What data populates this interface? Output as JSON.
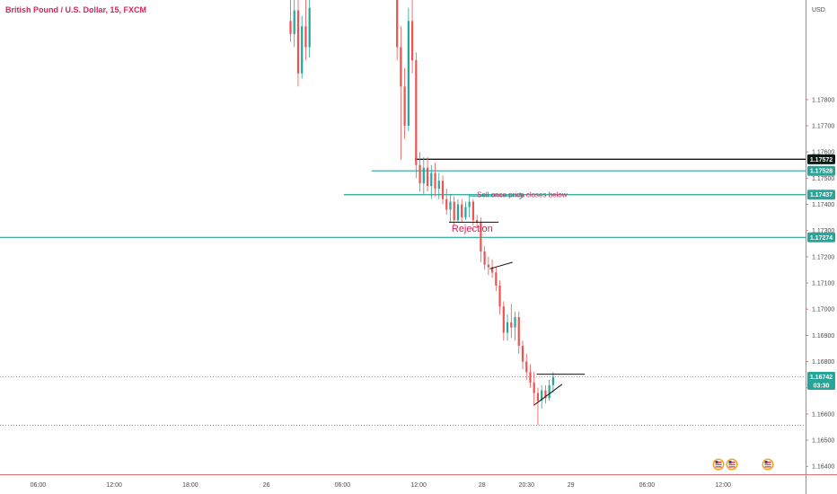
{
  "colors": {
    "up": "#26a69a",
    "down": "#ef5350",
    "level_line": "#26a69a",
    "resistance_line": "#0b1a14",
    "title": "#d6245b",
    "annotation": "#d6245b",
    "price_tag": "#26a69a",
    "price_tag_dark": "#0b1a14",
    "axis_line": "#e57373"
  },
  "chart_data": {
    "type": "candlestick",
    "title": "British Pound / U.S. Dollar, 15, FXCM",
    "currency_label": "USD",
    "ylim": [
      1.1637,
      1.1818
    ],
    "y_ticks": [
      "1.17800",
      "1.17700",
      "1.17600",
      "1.17500",
      "1.17400",
      "1.17300",
      "1.17200",
      "1.17100",
      "1.17000",
      "1.16900",
      "1.16800",
      "1.16700",
      "1.16600",
      "1.16500",
      "1.16400"
    ],
    "x_ticks": [
      {
        "label": "06:00",
        "t": 6
      },
      {
        "label": "12:00",
        "t": 12
      },
      {
        "label": "18:00",
        "t": 18
      },
      {
        "label": "26",
        "t": 24
      },
      {
        "label": "06:00",
        "t": 30
      },
      {
        "label": "12:00",
        "t": 36
      },
      {
        "label": "28",
        "t": 41
      },
      {
        "label": "20:30",
        "t": 44.5
      },
      {
        "label": "29",
        "t": 48
      },
      {
        "label": "06:00",
        "t": 54
      },
      {
        "label": "12:00",
        "t": 60
      }
    ],
    "xlim": [
      3,
      66.5
    ],
    "price_levels": [
      {
        "label": "1.17572",
        "value": 1.17572,
        "style": "dark",
        "x_start": 35.7
      },
      {
        "label": "1.17528",
        "value": 1.17528,
        "style": "green",
        "x_start": 32.3
      },
      {
        "label": "1.17437",
        "value": 1.17437,
        "style": "green",
        "x_start": 30.1
      },
      {
        "label": "1.17274",
        "value": 1.17274,
        "style": "green",
        "x_start": 3
      }
    ],
    "current_price": {
      "label": "1.16742",
      "value": 1.16742,
      "countdown": "03:30"
    },
    "low_line": {
      "value": 1.16557
    },
    "annotations": [
      {
        "text": "Sell once price closes below",
        "t": 40.6,
        "y": 1.17427
      },
      {
        "text": "Rejection",
        "t": 38.6,
        "y": 1.17295
      }
    ],
    "drawings": [
      {
        "kind": "arrow",
        "t1": 40.0,
        "y1": 1.17432,
        "t2": 44.3,
        "y2": 1.17432
      },
      {
        "kind": "line",
        "t1": 38.4,
        "y1": 1.17332,
        "t2": 42.3,
        "y2": 1.17332
      },
      {
        "kind": "line",
        "t1": 41.6,
        "y1": 1.17154,
        "t2": 43.4,
        "y2": 1.17179
      },
      {
        "kind": "line",
        "t1": 45.3,
        "y1": 1.16752,
        "t2": 49.1,
        "y2": 1.16752
      },
      {
        "kind": "line",
        "t1": 45.1,
        "y1": 1.16634,
        "t2": 47.3,
        "y2": 1.16713
      }
    ],
    "candles": [
      {
        "t": 25.9,
        "o": 1.181,
        "h": 1.1822,
        "l": 1.1802,
        "c": 1.1805
      },
      {
        "t": 26.2,
        "o": 1.1805,
        "h": 1.1818,
        "l": 1.18,
        "c": 1.1814
      },
      {
        "t": 26.5,
        "o": 1.1814,
        "h": 1.182,
        "l": 1.1785,
        "c": 1.179
      },
      {
        "t": 26.8,
        "o": 1.179,
        "h": 1.1812,
        "l": 1.1788,
        "c": 1.1808
      },
      {
        "t": 27.1,
        "o": 1.1808,
        "h": 1.1822,
        "l": 1.1795,
        "c": 1.18
      },
      {
        "t": 27.4,
        "o": 1.18,
        "h": 1.182,
        "l": 1.1796,
        "c": 1.1815
      },
      {
        "t": 34.3,
        "o": 1.1822,
        "h": 1.1828,
        "l": 1.1795,
        "c": 1.18
      },
      {
        "t": 34.6,
        "o": 1.18,
        "h": 1.1808,
        "l": 1.1757,
        "c": 1.1785
      },
      {
        "t": 34.9,
        "o": 1.1785,
        "h": 1.1792,
        "l": 1.1765,
        "c": 1.177
      },
      {
        "t": 35.2,
        "o": 1.177,
        "h": 1.1815,
        "l": 1.1768,
        "c": 1.181
      },
      {
        "t": 35.5,
        "o": 1.181,
        "h": 1.182,
        "l": 1.179,
        "c": 1.1795
      },
      {
        "t": 35.8,
        "o": 1.1795,
        "h": 1.1798,
        "l": 1.175,
        "c": 1.1755
      },
      {
        "t": 36.1,
        "o": 1.1755,
        "h": 1.176,
        "l": 1.1745,
        "c": 1.1748
      },
      {
        "t": 36.4,
        "o": 1.1748,
        "h": 1.1758,
        "l": 1.1744,
        "c": 1.1754
      },
      {
        "t": 36.7,
        "o": 1.1754,
        "h": 1.1758,
        "l": 1.1745,
        "c": 1.1747
      },
      {
        "t": 37.0,
        "o": 1.1747,
        "h": 1.1755,
        "l": 1.1742,
        "c": 1.1752
      },
      {
        "t": 37.3,
        "o": 1.1752,
        "h": 1.1756,
        "l": 1.1743,
        "c": 1.1746
      },
      {
        "t": 37.6,
        "o": 1.1746,
        "h": 1.1752,
        "l": 1.1742,
        "c": 1.1749
      },
      {
        "t": 37.9,
        "o": 1.1749,
        "h": 1.1751,
        "l": 1.174,
        "c": 1.1742
      },
      {
        "t": 38.2,
        "o": 1.1742,
        "h": 1.1746,
        "l": 1.1736,
        "c": 1.1738
      },
      {
        "t": 38.5,
        "o": 1.1738,
        "h": 1.1744,
        "l": 1.1733,
        "c": 1.1741
      },
      {
        "t": 38.8,
        "o": 1.1741,
        "h": 1.1743,
        "l": 1.1732,
        "c": 1.1734
      },
      {
        "t": 39.1,
        "o": 1.1734,
        "h": 1.1742,
        "l": 1.1733,
        "c": 1.174
      },
      {
        "t": 39.4,
        "o": 1.174,
        "h": 1.1742,
        "l": 1.1733,
        "c": 1.1735
      },
      {
        "t": 39.7,
        "o": 1.1735,
        "h": 1.1741,
        "l": 1.1734,
        "c": 1.1739
      },
      {
        "t": 40.0,
        "o": 1.1739,
        "h": 1.1744,
        "l": 1.1735,
        "c": 1.1741
      },
      {
        "t": 40.3,
        "o": 1.1741,
        "h": 1.1742,
        "l": 1.1732,
        "c": 1.1734
      },
      {
        "t": 40.6,
        "o": 1.1734,
        "h": 1.1736,
        "l": 1.1731,
        "c": 1.1733
      },
      {
        "t": 40.9,
        "o": 1.1733,
        "h": 1.1735,
        "l": 1.1718,
        "c": 1.1722
      },
      {
        "t": 41.2,
        "o": 1.1722,
        "h": 1.1724,
        "l": 1.1715,
        "c": 1.1717
      },
      {
        "t": 41.5,
        "o": 1.1717,
        "h": 1.172,
        "l": 1.1713,
        "c": 1.1716
      },
      {
        "t": 41.8,
        "o": 1.1716,
        "h": 1.1719,
        "l": 1.1712,
        "c": 1.1714
      },
      {
        "t": 42.1,
        "o": 1.1714,
        "h": 1.1716,
        "l": 1.1707,
        "c": 1.1709
      },
      {
        "t": 42.4,
        "o": 1.1709,
        "h": 1.1711,
        "l": 1.1698,
        "c": 1.1701
      },
      {
        "t": 42.7,
        "o": 1.1701,
        "h": 1.1703,
        "l": 1.1688,
        "c": 1.1691
      },
      {
        "t": 43.0,
        "o": 1.1691,
        "h": 1.1698,
        "l": 1.1688,
        "c": 1.1695
      },
      {
        "t": 43.3,
        "o": 1.1695,
        "h": 1.1702,
        "l": 1.1689,
        "c": 1.1693
      },
      {
        "t": 43.6,
        "o": 1.1693,
        "h": 1.1699,
        "l": 1.1688,
        "c": 1.1697
      },
      {
        "t": 43.9,
        "o": 1.1697,
        "h": 1.1699,
        "l": 1.1683,
        "c": 1.1686
      },
      {
        "t": 44.2,
        "o": 1.1686,
        "h": 1.1688,
        "l": 1.1677,
        "c": 1.168
      },
      {
        "t": 44.5,
        "o": 1.168,
        "h": 1.1683,
        "l": 1.1673,
        "c": 1.1676
      },
      {
        "t": 44.8,
        "o": 1.1676,
        "h": 1.1679,
        "l": 1.167,
        "c": 1.1672
      },
      {
        "t": 45.1,
        "o": 1.1672,
        "h": 1.1676,
        "l": 1.1663,
        "c": 1.1668
      },
      {
        "t": 45.4,
        "o": 1.1668,
        "h": 1.167,
        "l": 1.16557,
        "c": 1.1665
      },
      {
        "t": 45.7,
        "o": 1.1665,
        "h": 1.1671,
        "l": 1.1662,
        "c": 1.1669
      },
      {
        "t": 46.0,
        "o": 1.1669,
        "h": 1.1671,
        "l": 1.1664,
        "c": 1.1666
      },
      {
        "t": 46.3,
        "o": 1.1666,
        "h": 1.1673,
        "l": 1.1665,
        "c": 1.1671
      },
      {
        "t": 46.6,
        "o": 1.1671,
        "h": 1.1676,
        "l": 1.1668,
        "c": 1.16742
      }
    ]
  }
}
